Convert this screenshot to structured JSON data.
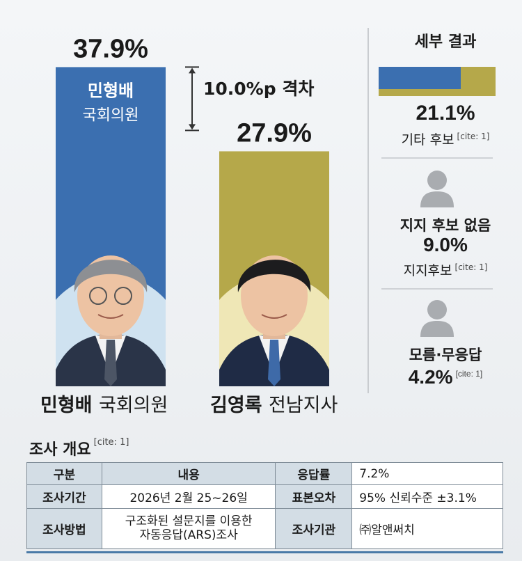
{
  "chart_data": {
    "type": "bar",
    "categories": [
      "민형배 국회의원",
      "김영록 전남지사"
    ],
    "values": [
      37.9,
      27.9
    ],
    "value_labels": [
      "37.9%",
      "27.9%"
    ],
    "colors": [
      "#3b6fb0",
      "#b5a84a"
    ],
    "bar_inner_label": {
      "line1": "민형배",
      "line2": "국회의원"
    },
    "gap_annotation": "10.0%p 격차"
  },
  "candidates": [
    {
      "name": "민형배",
      "title": "국회의원"
    },
    {
      "name": "김영록",
      "title": "전남지사"
    }
  ],
  "details": {
    "title": "세부 결과",
    "bar_fraction": 0.7,
    "bar_colors": {
      "fill": "#3b6fb0",
      "background": "#b5a84a"
    },
    "items": [
      {
        "value": "21.1%",
        "label": "기타 후보",
        "cite": "[cite: 1]"
      },
      {
        "heading": "지지 후보 없음",
        "value": "9.0%",
        "label": "지지후보",
        "cite": "[cite: 1]",
        "icon": "person-icon"
      },
      {
        "heading": "모름·무응답",
        "value": "4.2%",
        "cite": "[cite: 1]",
        "icon": "person-icon"
      }
    ]
  },
  "survey": {
    "title": "조사 개요",
    "cite": "[cite: 1]",
    "header": {
      "col1": "구분",
      "col2": "내용"
    },
    "rows": {
      "period_key": "조사기간",
      "period_val": "2026년 2월 25~26일",
      "method_key": "조사방법",
      "method_val1": "구조화된 설문지를 이용한",
      "method_val2": "자동응답(ARS)조사",
      "response_key": "응답률",
      "response_val": "7.2%",
      "error_key": "표본오차",
      "error_val": "95% 신뢰수준 ±3.1%",
      "org_key": "조사기관",
      "org_val": "㈜알앤써치"
    }
  }
}
